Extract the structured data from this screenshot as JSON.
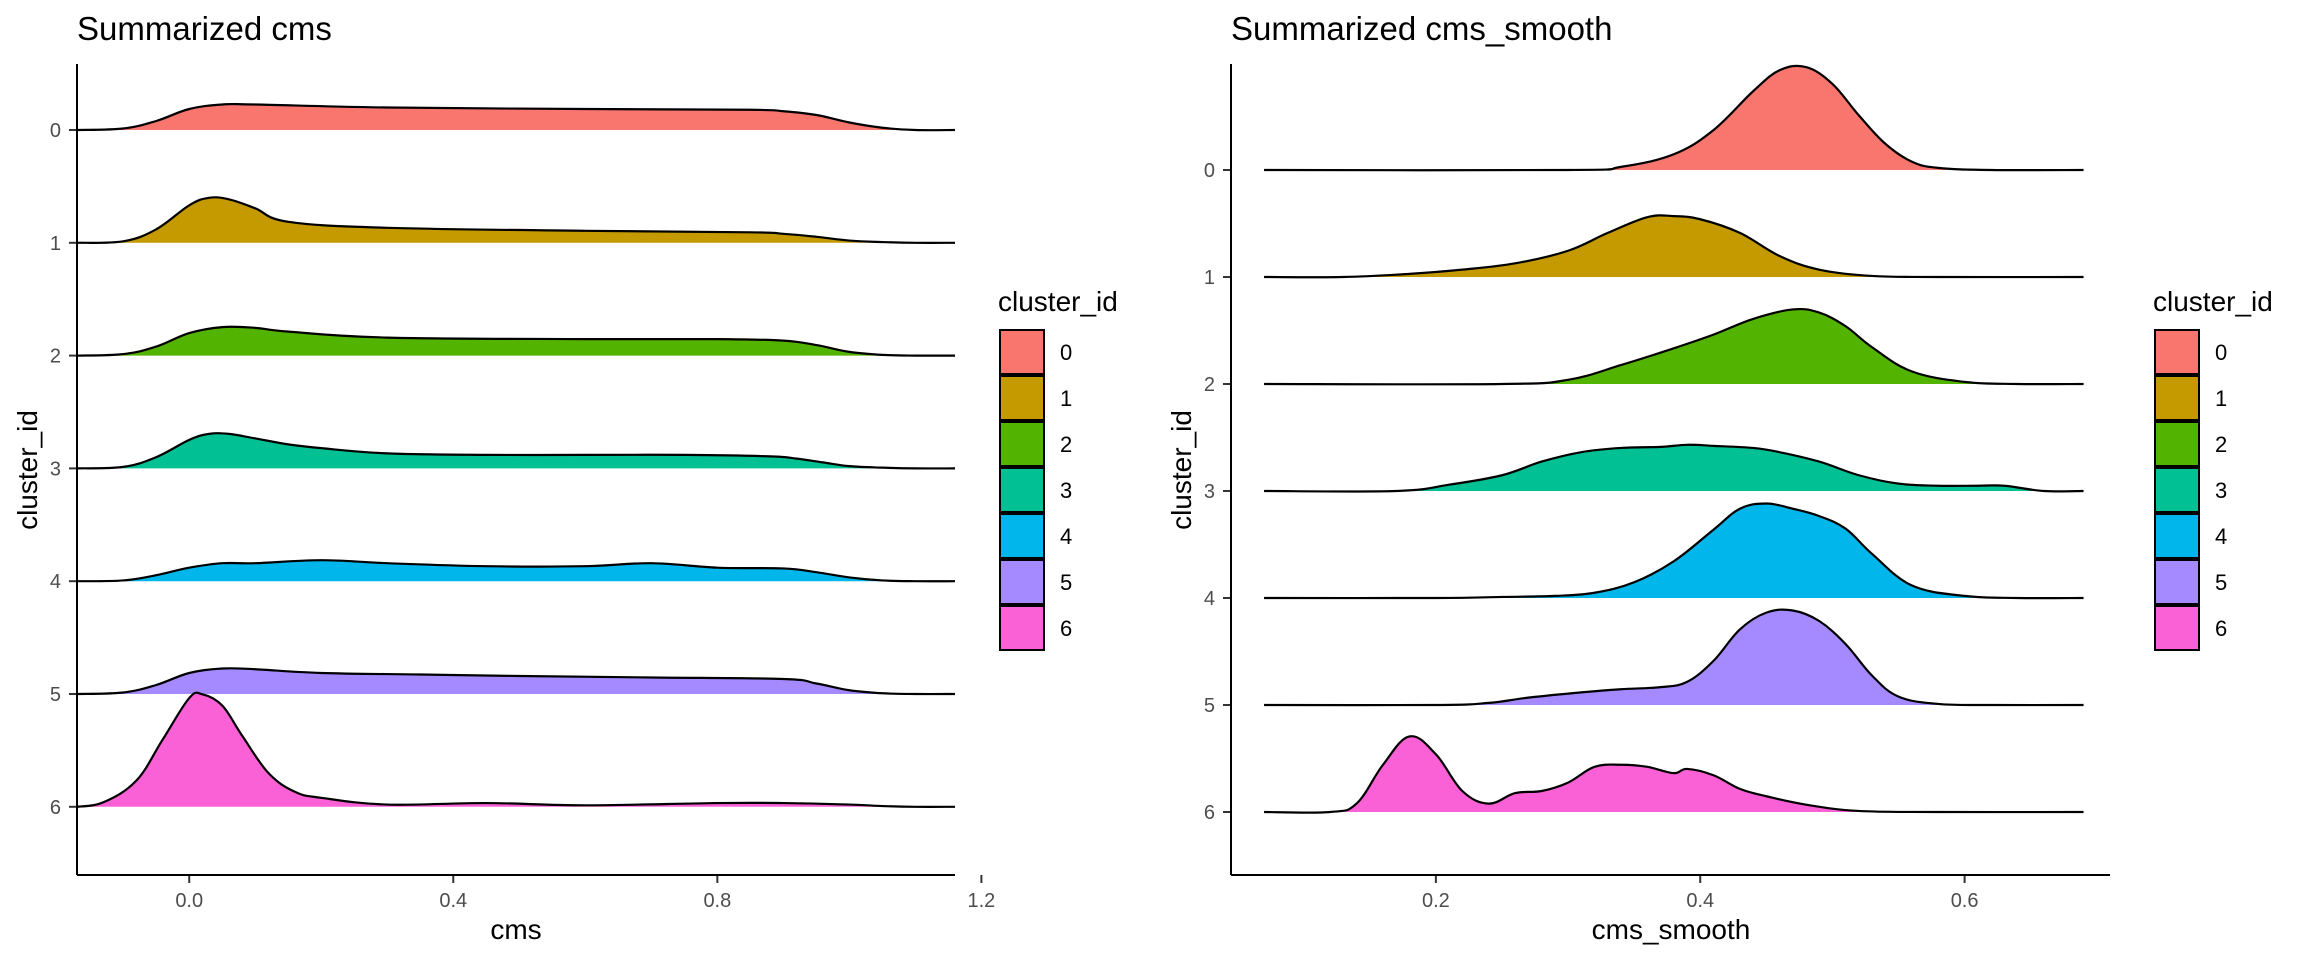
{
  "chart_data": [
    {
      "type": "ridgeline",
      "title": "Summarized cms",
      "xlabel": "cms",
      "ylabel": "cluster_id",
      "xlim": [
        -0.17,
        1.16
      ],
      "x_ticks": [
        0.0,
        0.4,
        0.8,
        1.2
      ],
      "x_tick_labels": [
        "0.0",
        "0.4",
        "0.8",
        "1.2"
      ],
      "categories": [
        "0",
        "1",
        "2",
        "3",
        "4",
        "5",
        "6"
      ],
      "grid": false,
      "legend": {
        "title": "cluster_id",
        "placement": "right",
        "entries": [
          "0",
          "1",
          "2",
          "3",
          "4",
          "5",
          "6"
        ]
      },
      "series": [
        {
          "name": "0",
          "color": "#F8766D",
          "x": [
            -0.17,
            -0.1,
            -0.05,
            0.0,
            0.05,
            0.1,
            0.3,
            0.6,
            0.85,
            0.9,
            0.95,
            1.0,
            1.05,
            1.1,
            1.16
          ],
          "density": [
            0.0,
            0.02,
            0.12,
            0.28,
            0.34,
            0.34,
            0.3,
            0.28,
            0.27,
            0.25,
            0.2,
            0.1,
            0.03,
            0.0,
            0.0
          ]
        },
        {
          "name": "1",
          "color": "#C49A00",
          "x": [
            -0.17,
            -0.1,
            -0.05,
            0.0,
            0.03,
            0.06,
            0.1,
            0.15,
            0.3,
            0.6,
            0.85,
            0.9,
            0.95,
            1.0,
            1.05,
            1.1,
            1.16
          ],
          "density": [
            0.0,
            0.02,
            0.18,
            0.5,
            0.6,
            0.58,
            0.46,
            0.28,
            0.2,
            0.16,
            0.14,
            0.12,
            0.08,
            0.03,
            0.01,
            0.0,
            0.0
          ]
        },
        {
          "name": "2",
          "color": "#53B400",
          "x": [
            -0.17,
            -0.1,
            -0.05,
            0.0,
            0.05,
            0.1,
            0.15,
            0.3,
            0.6,
            0.8,
            0.9,
            0.95,
            1.0,
            1.05,
            1.1,
            1.16
          ],
          "density": [
            0.0,
            0.02,
            0.12,
            0.3,
            0.38,
            0.37,
            0.32,
            0.24,
            0.22,
            0.22,
            0.2,
            0.14,
            0.05,
            0.01,
            0.0,
            0.0
          ]
        },
        {
          "name": "3",
          "color": "#00C094",
          "x": [
            -0.17,
            -0.1,
            -0.05,
            0.0,
            0.03,
            0.06,
            0.1,
            0.15,
            0.2,
            0.3,
            0.45,
            0.6,
            0.75,
            0.88,
            0.92,
            0.96,
            1.0,
            1.05,
            1.1,
            1.16
          ],
          "density": [
            0.0,
            0.02,
            0.15,
            0.38,
            0.46,
            0.46,
            0.4,
            0.32,
            0.27,
            0.2,
            0.18,
            0.18,
            0.18,
            0.16,
            0.13,
            0.08,
            0.03,
            0.01,
            0.0,
            0.0
          ]
        },
        {
          "name": "4",
          "color": "#00B6EB",
          "x": [
            -0.17,
            -0.1,
            -0.05,
            0.0,
            0.05,
            0.1,
            0.2,
            0.3,
            0.45,
            0.6,
            0.7,
            0.8,
            0.9,
            0.95,
            1.0,
            1.05,
            1.1,
            1.16
          ],
          "density": [
            0.0,
            0.01,
            0.08,
            0.18,
            0.24,
            0.24,
            0.28,
            0.24,
            0.2,
            0.2,
            0.24,
            0.18,
            0.17,
            0.12,
            0.05,
            0.01,
            0.0,
            0.0
          ]
        },
        {
          "name": "5",
          "color": "#A58AFF",
          "x": [
            -0.17,
            -0.1,
            -0.05,
            0.0,
            0.05,
            0.1,
            0.2,
            0.35,
            0.5,
            0.7,
            0.9,
            0.95,
            1.0,
            1.05,
            1.1,
            1.16
          ],
          "density": [
            0.0,
            0.02,
            0.12,
            0.28,
            0.34,
            0.33,
            0.28,
            0.26,
            0.24,
            0.22,
            0.2,
            0.14,
            0.05,
            0.01,
            0.0,
            0.0
          ]
        },
        {
          "name": "6",
          "color": "#FB61D7",
          "x": [
            -0.17,
            -0.13,
            -0.08,
            -0.04,
            0.0,
            0.02,
            0.05,
            0.08,
            0.12,
            0.16,
            0.2,
            0.3,
            0.45,
            0.6,
            0.8,
            0.9,
            1.0,
            1.05,
            1.1,
            1.16
          ],
          "density": [
            0.0,
            0.06,
            0.35,
            0.9,
            1.45,
            1.5,
            1.35,
            0.95,
            0.45,
            0.2,
            0.12,
            0.03,
            0.05,
            0.02,
            0.05,
            0.05,
            0.03,
            0.01,
            0.0,
            0.0
          ]
        }
      ]
    },
    {
      "type": "ridgeline",
      "title": "Summarized cms_smooth",
      "xlabel": "cms_smooth",
      "ylabel": "cluster_id",
      "xlim": [
        0.045,
        0.71
      ],
      "x_ticks": [
        0.2,
        0.4,
        0.6
      ],
      "x_tick_labels": [
        "0.2",
        "0.4",
        "0.6"
      ],
      "categories": [
        "0",
        "1",
        "2",
        "3",
        "4",
        "5",
        "6"
      ],
      "grid": false,
      "legend": {
        "title": "cluster_id",
        "placement": "right",
        "entries": [
          "0",
          "1",
          "2",
          "3",
          "4",
          "5",
          "6"
        ]
      },
      "series": [
        {
          "name": "0",
          "color": "#F8766D",
          "x": [
            0.07,
            0.3,
            0.34,
            0.38,
            0.41,
            0.44,
            0.46,
            0.48,
            0.5,
            0.52,
            0.54,
            0.56,
            0.58,
            0.62,
            0.69
          ],
          "density": [
            0.0,
            0.0,
            0.03,
            0.15,
            0.38,
            0.75,
            0.95,
            0.98,
            0.82,
            0.52,
            0.25,
            0.08,
            0.02,
            0.0,
            0.0
          ]
        },
        {
          "name": "1",
          "color": "#C49A00",
          "x": [
            0.07,
            0.13,
            0.18,
            0.22,
            0.26,
            0.3,
            0.33,
            0.36,
            0.38,
            0.4,
            0.43,
            0.46,
            0.49,
            0.53,
            0.58,
            0.69
          ],
          "density": [
            0.0,
            0.0,
            0.03,
            0.07,
            0.13,
            0.25,
            0.42,
            0.57,
            0.58,
            0.55,
            0.42,
            0.2,
            0.07,
            0.01,
            0.0,
            0.0
          ]
        },
        {
          "name": "2",
          "color": "#53B400",
          "x": [
            0.07,
            0.25,
            0.3,
            0.34,
            0.38,
            0.41,
            0.44,
            0.47,
            0.49,
            0.51,
            0.53,
            0.56,
            0.6,
            0.64,
            0.69
          ],
          "density": [
            0.0,
            0.0,
            0.04,
            0.18,
            0.34,
            0.47,
            0.62,
            0.71,
            0.68,
            0.55,
            0.35,
            0.12,
            0.02,
            0.0,
            0.0
          ]
        },
        {
          "name": "3",
          "color": "#00C094",
          "x": [
            0.07,
            0.17,
            0.21,
            0.25,
            0.28,
            0.31,
            0.34,
            0.37,
            0.39,
            0.41,
            0.44,
            0.46,
            0.49,
            0.52,
            0.55,
            0.58,
            0.61,
            0.63,
            0.66,
            0.69
          ],
          "density": [
            0.0,
            0.0,
            0.06,
            0.15,
            0.28,
            0.37,
            0.41,
            0.42,
            0.44,
            0.43,
            0.41,
            0.37,
            0.28,
            0.15,
            0.07,
            0.05,
            0.05,
            0.05,
            0.0,
            0.0
          ]
        },
        {
          "name": "4",
          "color": "#00B6EB",
          "x": [
            0.07,
            0.2,
            0.25,
            0.29,
            0.32,
            0.35,
            0.38,
            0.41,
            0.43,
            0.45,
            0.47,
            0.49,
            0.51,
            0.53,
            0.56,
            0.6,
            0.64,
            0.69
          ],
          "density": [
            0.0,
            0.0,
            0.01,
            0.02,
            0.05,
            0.15,
            0.35,
            0.65,
            0.85,
            0.9,
            0.85,
            0.78,
            0.66,
            0.42,
            0.12,
            0.02,
            0.0,
            0.0
          ]
        },
        {
          "name": "5",
          "color": "#A58AFF",
          "x": [
            0.07,
            0.2,
            0.24,
            0.27,
            0.31,
            0.34,
            0.37,
            0.39,
            0.41,
            0.43,
            0.45,
            0.47,
            0.49,
            0.51,
            0.53,
            0.55,
            0.58,
            0.62,
            0.69
          ],
          "density": [
            0.0,
            0.0,
            0.02,
            0.07,
            0.12,
            0.15,
            0.17,
            0.22,
            0.42,
            0.72,
            0.88,
            0.9,
            0.8,
            0.58,
            0.28,
            0.08,
            0.01,
            0.0,
            0.0
          ]
        },
        {
          "name": "6",
          "color": "#FB61D7",
          "x": [
            0.07,
            0.12,
            0.14,
            0.16,
            0.18,
            0.2,
            0.22,
            0.24,
            0.26,
            0.28,
            0.3,
            0.32,
            0.34,
            0.36,
            0.38,
            0.39,
            0.41,
            0.43,
            0.45,
            0.48,
            0.52,
            0.58,
            0.69
          ],
          "density": [
            0.0,
            0.0,
            0.08,
            0.45,
            0.72,
            0.55,
            0.2,
            0.08,
            0.18,
            0.2,
            0.28,
            0.43,
            0.45,
            0.43,
            0.37,
            0.41,
            0.35,
            0.22,
            0.15,
            0.07,
            0.01,
            0.0,
            0.0
          ]
        }
      ]
    }
  ]
}
